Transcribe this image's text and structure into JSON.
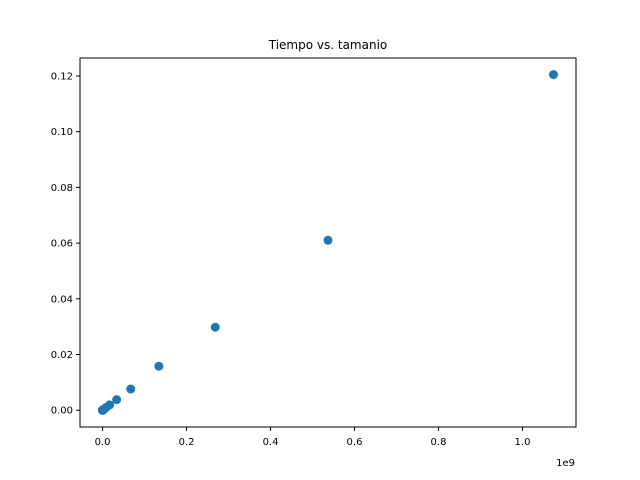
{
  "chart_data": {
    "type": "scatter",
    "title": "Tiempo vs. tamanio",
    "xlabel": "",
    "ylabel": "",
    "x_offset_label": "1e9",
    "xlim": [
      -0.0536870912,
      1.1274289152
    ],
    "ylim": [
      -0.006022,
      0.126453
    ],
    "x_ticks": [
      0.0,
      0.2,
      0.4,
      0.6,
      0.8,
      1.0
    ],
    "x_tick_labels": [
      "0.0",
      "0.2",
      "0.4",
      "0.6",
      "0.8",
      "1.0"
    ],
    "y_ticks": [
      0.0,
      0.02,
      0.04,
      0.06,
      0.08,
      0.1,
      0.12
    ],
    "y_tick_labels": [
      "0.00",
      "0.02",
      "0.04",
      "0.06",
      "0.08",
      "0.10",
      "0.12"
    ],
    "grid": false,
    "legend": "none",
    "marker_color": "#1f77b4",
    "points": [
      {
        "x": 1e-06,
        "y": 0.0
      },
      {
        "x": 2e-06,
        "y": 0.0
      },
      {
        "x": 4.1e-06,
        "y": 0.0
      },
      {
        "x": 8.2e-06,
        "y": 0.0
      },
      {
        "x": 1.64e-05,
        "y": 0.0
      },
      {
        "x": 3.28e-05,
        "y": 0.0
      },
      {
        "x": 6.55e-05,
        "y": 0.0
      },
      {
        "x": 0.0001311,
        "y": 1e-05
      },
      {
        "x": 0.0002621,
        "y": 3e-05
      },
      {
        "x": 0.0005243,
        "y": 6e-05
      },
      {
        "x": 0.0010486,
        "y": 0.00012
      },
      {
        "x": 0.0020972,
        "y": 0.00024
      },
      {
        "x": 0.0041943,
        "y": 0.00048
      },
      {
        "x": 0.0083886,
        "y": 0.00095
      },
      {
        "x": 0.0167772,
        "y": 0.0019
      },
      {
        "x": 0.0335544,
        "y": 0.0038
      },
      {
        "x": 0.0671089,
        "y": 0.0076
      },
      {
        "x": 0.1342177,
        "y": 0.0158
      },
      {
        "x": 0.2684355,
        "y": 0.0298
      },
      {
        "x": 0.5368709,
        "y": 0.061
      },
      {
        "x": 1.0737418,
        "y": 0.1205
      }
    ]
  }
}
